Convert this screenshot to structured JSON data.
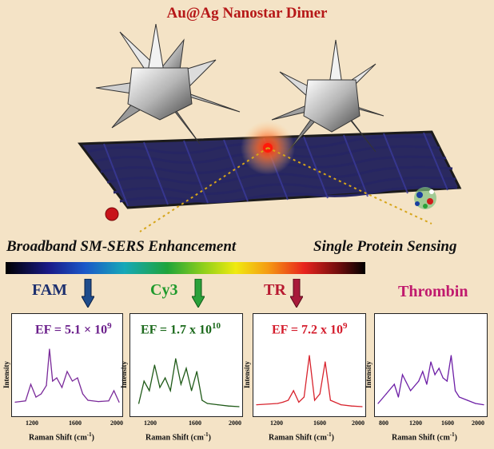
{
  "title": "Au@Ag Nanostar Dimer",
  "label_left": "Broadband SM-SERS Enhancement",
  "label_right": "Single Protein Sensing",
  "panels": [
    {
      "dye": "FAM",
      "dye_color": "#1c2f6e",
      "arrow_color": "#1e4c8c",
      "ef": "EF = 5.1 × 10",
      "ef_exp": "9",
      "ef_color": "#6a1d8a",
      "line_color": "#7a2a9a",
      "ticks": [
        "1200",
        "1600",
        "2000"
      ]
    },
    {
      "dye": "Cy3",
      "dye_color": "#1f9a2c",
      "arrow_color": "#2aa13a",
      "ef": "EF = 1.7 x 10",
      "ef_exp": "10",
      "ef_color": "#1c6a1c",
      "line_color": "#1f5a18",
      "ticks": [
        "1200",
        "1600",
        "2000"
      ]
    },
    {
      "dye": "TR",
      "dye_color": "#b81a30",
      "arrow_color": "#a81a3a",
      "ef": "EF = 7.2 x 10",
      "ef_exp": "9",
      "ef_color": "#d41c2c",
      "line_color": "#d8242e",
      "ticks": [
        "1200",
        "1600",
        "2000"
      ]
    },
    {
      "dye": "Thrombin",
      "dye_color": "#c01a6e",
      "arrow_color": "",
      "ef": "",
      "ef_exp": "",
      "ef_color": "",
      "line_color": "#6d1fa6",
      "ticks": [
        "800",
        "1200",
        "1600",
        "2000"
      ]
    }
  ],
  "axis": {
    "ylabel": "Intensity",
    "xlabel": "Raman Shift (cm",
    "xlabel_sup": "-1",
    "xlabel_end": ")"
  },
  "chart_data": [
    {
      "type": "line",
      "name": "FAM",
      "x": [
        1000,
        1100,
        1150,
        1200,
        1250,
        1300,
        1330,
        1360,
        1400,
        1450,
        1500,
        1550,
        1600,
        1650,
        1700,
        1800,
        1900,
        1950,
        2000
      ],
      "values": [
        0.12,
        0.14,
        0.4,
        0.2,
        0.25,
        0.38,
        0.95,
        0.45,
        0.5,
        0.35,
        0.6,
        0.45,
        0.5,
        0.25,
        0.15,
        0.13,
        0.14,
        0.3,
        0.12
      ]
    },
    {
      "type": "line",
      "name": "Cy3",
      "x": [
        1050,
        1100,
        1150,
        1200,
        1250,
        1300,
        1350,
        1400,
        1450,
        1500,
        1550,
        1600,
        1650,
        1700,
        1800,
        1900,
        2000
      ],
      "values": [
        0.1,
        0.45,
        0.3,
        0.7,
        0.35,
        0.5,
        0.3,
        0.8,
        0.4,
        0.65,
        0.3,
        0.6,
        0.15,
        0.1,
        0.08,
        0.06,
        0.05
      ]
    },
    {
      "type": "line",
      "name": "TR",
      "x": [
        1000,
        1200,
        1250,
        1300,
        1350,
        1400,
        1450,
        1500,
        1550,
        1600,
        1650,
        1700,
        1800,
        1900,
        2000
      ],
      "values": [
        0.08,
        0.1,
        0.12,
        0.15,
        0.3,
        0.12,
        0.2,
        0.85,
        0.15,
        0.25,
        0.75,
        0.15,
        0.08,
        0.06,
        0.05
      ]
    },
    {
      "type": "line",
      "name": "Thrombin",
      "x": [
        700,
        800,
        900,
        950,
        1000,
        1100,
        1200,
        1250,
        1300,
        1350,
        1400,
        1450,
        1500,
        1550,
        1600,
        1650,
        1700,
        1800,
        1900,
        2000
      ],
      "values": [
        0.1,
        0.25,
        0.4,
        0.2,
        0.55,
        0.3,
        0.45,
        0.6,
        0.4,
        0.75,
        0.55,
        0.65,
        0.5,
        0.45,
        0.85,
        0.3,
        0.2,
        0.15,
        0.1,
        0.08
      ]
    }
  ]
}
